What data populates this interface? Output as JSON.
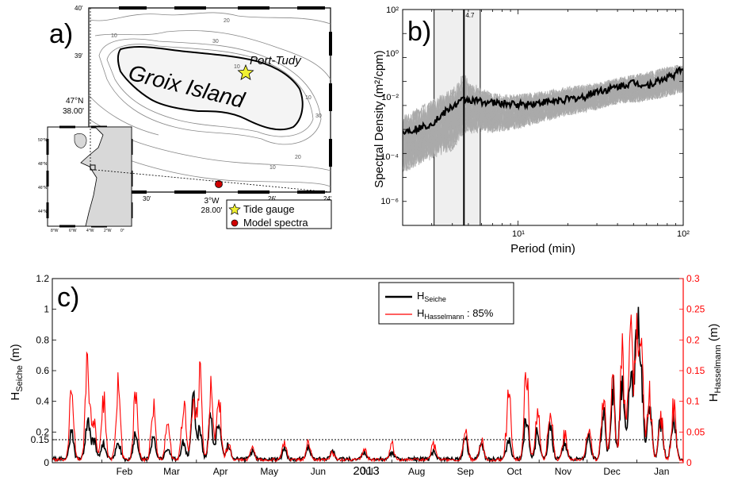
{
  "panel_a": {
    "label": "a)",
    "island_name": "Groix Island",
    "port_label": "Port-Tudy",
    "lat_main": "47°N",
    "lat_sub": "38.00'",
    "lon_main": "3°W",
    "lon_sub": "28.00'",
    "tick_top_left": "40'",
    "tick_39": "39'",
    "tick_30": "30'",
    "tick_26": "26'",
    "tick_24": "24'",
    "contour_labels": [
      "10",
      "20",
      "30",
      "10",
      "10",
      "30",
      "20",
      "10"
    ],
    "inset_lat": [
      "50°N",
      "48°N",
      "46°N",
      "44°N"
    ],
    "inset_lon": [
      "6°W",
      "4°W",
      "2°W",
      "0°"
    ],
    "inset_lon_left": "8°W",
    "legend": {
      "tide_gauge": "Tide gauge",
      "model_spectra": "Model spectra"
    },
    "colors": {
      "star": "#f0f030",
      "dot": "#d00000"
    }
  },
  "chart_data": [
    {
      "type": "line",
      "panel_label": "b)",
      "xlabel": "Period (min)",
      "ylabel": "Spectral Density (m²/cpm)",
      "xscale": "log",
      "yscale": "log",
      "xlim": [
        2,
        100
      ],
      "ylim": [
        1e-07,
        100
      ],
      "x_ticks": [
        "10¹",
        "10²"
      ],
      "y_ticks": [
        "10⁻⁶",
        "10⁻⁴",
        "10⁻²",
        "10⁰",
        "10²"
      ],
      "annotation": "4.7",
      "vline_period": 4.7,
      "shaded_band": [
        3.1,
        5.9
      ],
      "series": [
        {
          "color": "#000000",
          "x": [
            2,
            2.3,
            2.6,
            3,
            3.3,
            3.7,
            4.2,
            4.7,
            5.3,
            6,
            7,
            8,
            10,
            12,
            15,
            20,
            25,
            30,
            35,
            40,
            50,
            60,
            70,
            80,
            90,
            100
          ],
          "values": [
            0.0008,
            0.001,
            0.0012,
            0.0018,
            0.003,
            0.006,
            0.011,
            0.018,
            0.016,
            0.015,
            0.013,
            0.012,
            0.011,
            0.012,
            0.014,
            0.018,
            0.022,
            0.04,
            0.045,
            0.06,
            0.09,
            0.07,
            0.1,
            0.15,
            0.2,
            0.4
          ]
        }
      ],
      "envelope": {
        "color": "#aaaaaa",
        "x": [
          2,
          3,
          4,
          4.7,
          5,
          7,
          10,
          15,
          20,
          30,
          40,
          60,
          80,
          100
        ],
        "low": [
          3e-07,
          1e-06,
          2e-06,
          1e-05,
          2e-05,
          5e-05,
          0.0001,
          0.0003,
          0.0005,
          0.001,
          0.002,
          0.002,
          0.003,
          0.005
        ],
        "high": [
          0.02,
          0.1,
          0.3,
          1.5,
          0.5,
          0.1,
          0.08,
          0.1,
          0.15,
          0.2,
          0.3,
          0.6,
          1.0,
          1.2
        ]
      }
    },
    {
      "type": "line",
      "panel_label": "c)",
      "xlabel": "2013",
      "ylabel_left": "H_Seiche (m)",
      "ylabel_right": "H_Hasselmann (m)",
      "ylim_left": [
        0,
        1.2
      ],
      "ylim_right": [
        0,
        0.3
      ],
      "left_ticks": [
        0,
        0.15,
        0.2,
        0.4,
        0.6,
        0.8,
        1,
        1.2
      ],
      "left_tick_labels": [
        "0",
        "0.15",
        "0.2",
        "0.4",
        "0.6",
        "0.8",
        "1",
        "1.2"
      ],
      "right_ticks": [
        0,
        0.05,
        0.1,
        0.15,
        0.2,
        0.25,
        0.3
      ],
      "right_tick_labels": [
        "0",
        "0.05",
        "0.1",
        "0.15",
        "0.2",
        "0.25",
        "0.3"
      ],
      "threshold": 0.15,
      "months": [
        "Feb",
        "Mar",
        "Apr",
        "May",
        "Jun",
        "Jul",
        "Aug",
        "Sep",
        "Oct",
        "Nov",
        "Dec",
        "Jan"
      ],
      "legend": [
        {
          "label": "H",
          "subscript": "Seiche",
          "color": "#000000"
        },
        {
          "label": "H",
          "subscript": "Hasselmann",
          "suffix": " : 85%",
          "color": "#ff0000"
        }
      ],
      "events": [
        {
          "day": 12,
          "seiche": 0.2,
          "hassel": 0.13
        },
        {
          "day": 22,
          "seiche": 0.3,
          "hassel": 0.178
        },
        {
          "day": 26,
          "seiche": 0.15,
          "hassel": 0.08
        },
        {
          "day": 32,
          "seiche": 0.12,
          "hassel": 0.11
        },
        {
          "day": 41,
          "seiche": 0.15,
          "hassel": 0.14
        },
        {
          "day": 52,
          "seiche": 0.18,
          "hassel": 0.12
        },
        {
          "day": 63,
          "seiche": 0.15,
          "hassel": 0.1
        },
        {
          "day": 72,
          "seiche": 0.08,
          "hassel": 0.075
        },
        {
          "day": 82,
          "seiche": 0.12,
          "hassel": 0.11
        },
        {
          "day": 88,
          "seiche": 0.45,
          "hassel": 0.115
        },
        {
          "day": 92,
          "seiche": 0.2,
          "hassel": 0.16
        },
        {
          "day": 99,
          "seiche": 0.3,
          "hassel": 0.125
        },
        {
          "day": 104,
          "seiche": 0.35,
          "hassel": 0.12
        },
        {
          "day": 110,
          "seiche": 0.1,
          "hassel": 0.03
        },
        {
          "day": 125,
          "seiche": 0.05,
          "hassel": 0.02
        },
        {
          "day": 145,
          "seiche": 0.07,
          "hassel": 0.03
        },
        {
          "day": 160,
          "seiche": 0.1,
          "hassel": 0.035
        },
        {
          "day": 175,
          "seiche": 0.06,
          "hassel": 0.015
        },
        {
          "day": 195,
          "seiche": 0.05,
          "hassel": 0.02
        },
        {
          "day": 212,
          "seiche": 0.06,
          "hassel": 0.03
        },
        {
          "day": 238,
          "seiche": 0.05,
          "hassel": 0.03
        },
        {
          "day": 258,
          "seiche": 0.15,
          "hassel": 0.06
        },
        {
          "day": 268,
          "seiche": 0.1,
          "hassel": 0.04
        },
        {
          "day": 285,
          "seiche": 0.15,
          "hassel": 0.12
        },
        {
          "day": 296,
          "seiche": 0.35,
          "hassel": 0.168
        },
        {
          "day": 303,
          "seiche": 0.2,
          "hassel": 0.09
        },
        {
          "day": 311,
          "seiche": 0.25,
          "hassel": 0.11
        },
        {
          "day": 320,
          "seiche": 0.12,
          "hassel": 0.05
        },
        {
          "day": 335,
          "seiche": 0.15,
          "hassel": 0.06
        },
        {
          "day": 344,
          "seiche": 0.35,
          "hassel": 0.12
        },
        {
          "day": 350,
          "seiche": 0.55,
          "hassel": 0.15
        },
        {
          "day": 356,
          "seiche": 0.65,
          "hassel": 0.2
        },
        {
          "day": 361,
          "seiche": 0.6,
          "hassel": 0.25
        },
        {
          "day": 365,
          "seiche": 1.1,
          "hassel": 0.22
        },
        {
          "day": 368,
          "seiche": 0.5,
          "hassel": 0.18
        },
        {
          "day": 373,
          "seiche": 0.4,
          "hassel": 0.12
        },
        {
          "day": 380,
          "seiche": 0.3,
          "hassel": 0.09
        },
        {
          "day": 388,
          "seiche": 0.35,
          "hassel": 0.1
        }
      ]
    }
  ]
}
